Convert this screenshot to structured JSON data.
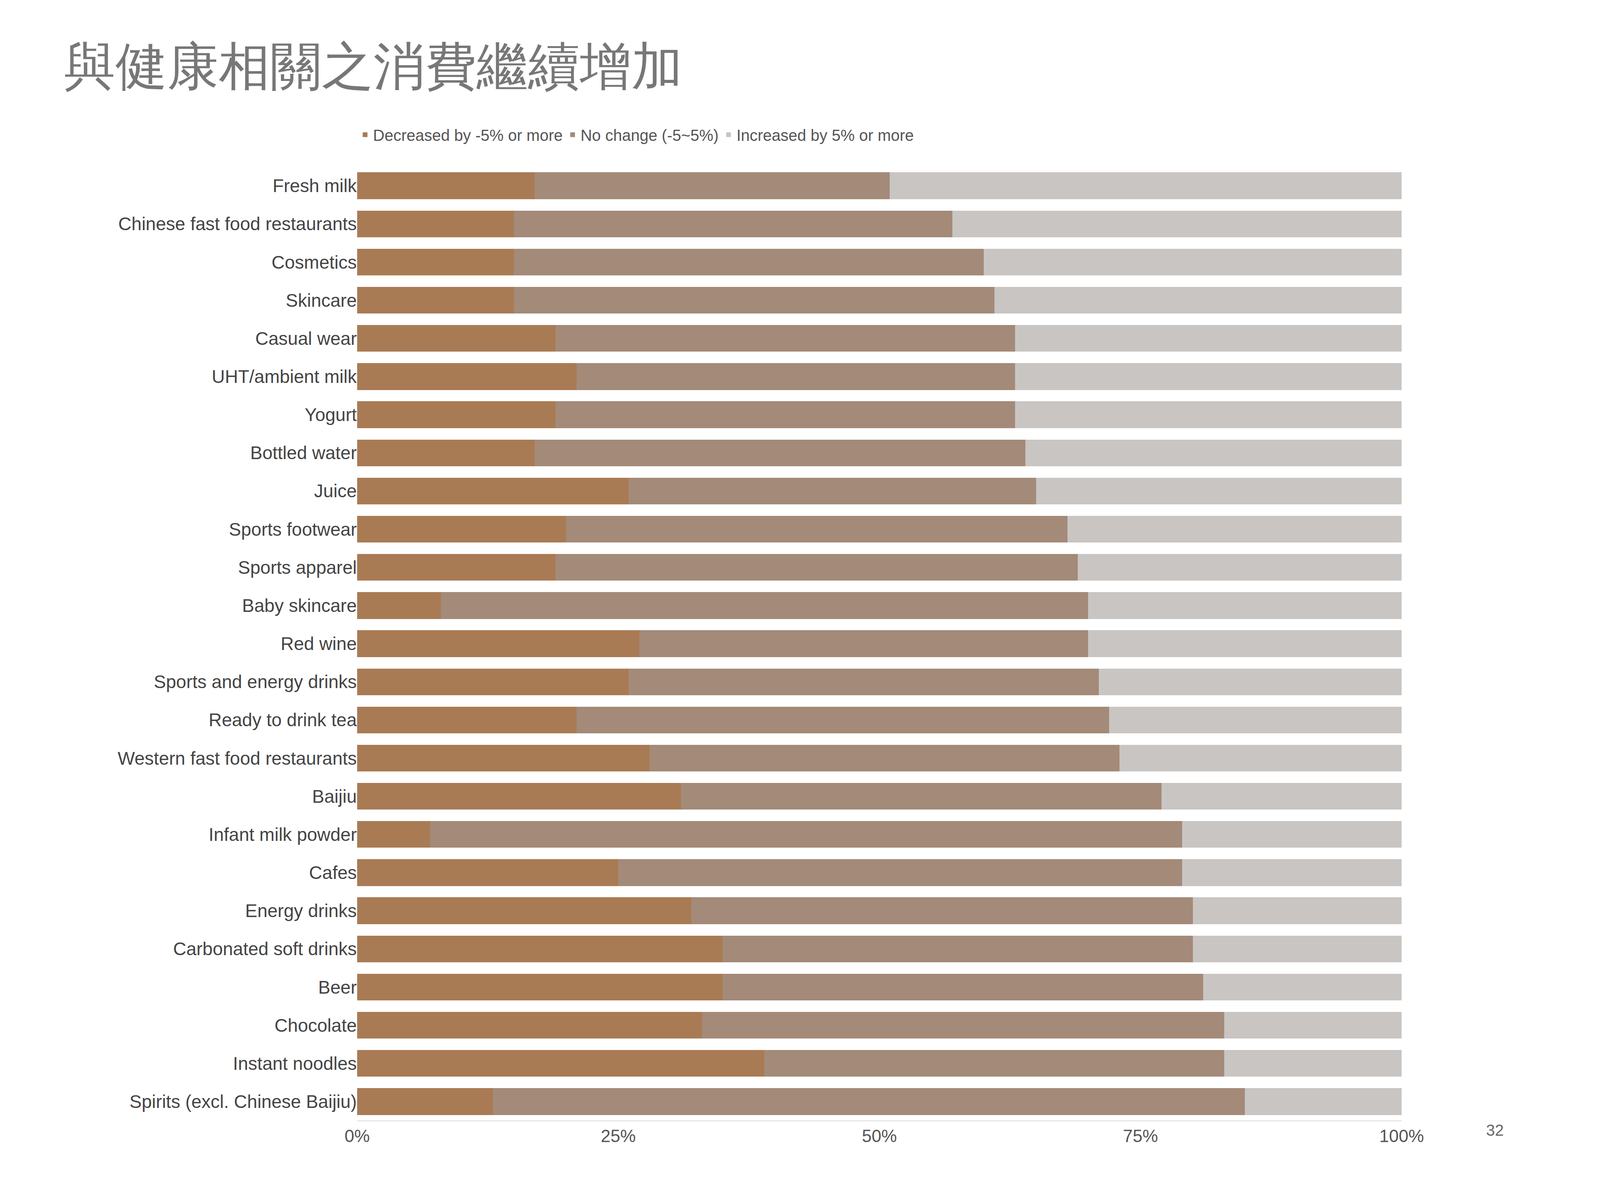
{
  "chart_data": {
    "type": "bar",
    "title": "與健康相關之消費繼續增加",
    "orientation": "horizontal",
    "stacked": true,
    "grid": false,
    "legend": "top",
    "categories": [
      "Fresh milk",
      "Chinese fast food restaurants",
      "Cosmetics",
      "Skincare",
      "Casual wear",
      "UHT/ambient milk",
      "Yogurt",
      "Bottled water",
      "Juice",
      "Sports footwear",
      "Sports apparel",
      "Baby skincare",
      "Red wine",
      "Sports and energy drinks",
      "Ready to drink tea",
      "Western fast food restaurants",
      "Baijiu",
      "Infant milk powder",
      "Cafes",
      "Energy drinks",
      "Carbonated soft drinks",
      "Beer",
      "Chocolate",
      "Instant noodles",
      "Spirits (excl. Chinese Baijiu)"
    ],
    "series": [
      {
        "name": "Decreased by -5% or more",
        "color": "#a97b54",
        "values": [
          17,
          15,
          15,
          15,
          19,
          21,
          19,
          17,
          26,
          20,
          19,
          8,
          27,
          26,
          21,
          28,
          31,
          7,
          25,
          32,
          35,
          35,
          33,
          39,
          13
        ]
      },
      {
        "name": "No change (-5~5%)",
        "color": "#a48a78",
        "values": [
          34,
          42,
          45,
          46,
          44,
          42,
          44,
          47,
          39,
          48,
          50,
          62,
          43,
          45,
          51,
          45,
          46,
          72,
          54,
          48,
          45,
          46,
          50,
          44,
          72
        ]
      },
      {
        "name": "Increased by 5% or more",
        "color": "#c9c5c3",
        "values": [
          49,
          43,
          40,
          39,
          37,
          37,
          37,
          36,
          35,
          32,
          31,
          30,
          30,
          29,
          28,
          27,
          23,
          21,
          21,
          20,
          20,
          19,
          17,
          17,
          15
        ]
      }
    ],
    "xlim": [
      0,
      100
    ],
    "xticks": [
      {
        "value": 0,
        "label": "0%"
      },
      {
        "value": 25,
        "label": "25%"
      },
      {
        "value": 50,
        "label": "50%"
      },
      {
        "value": 75,
        "label": "75%"
      },
      {
        "value": 100,
        "label": "100%"
      }
    ],
    "annotations": [
      "32"
    ]
  }
}
